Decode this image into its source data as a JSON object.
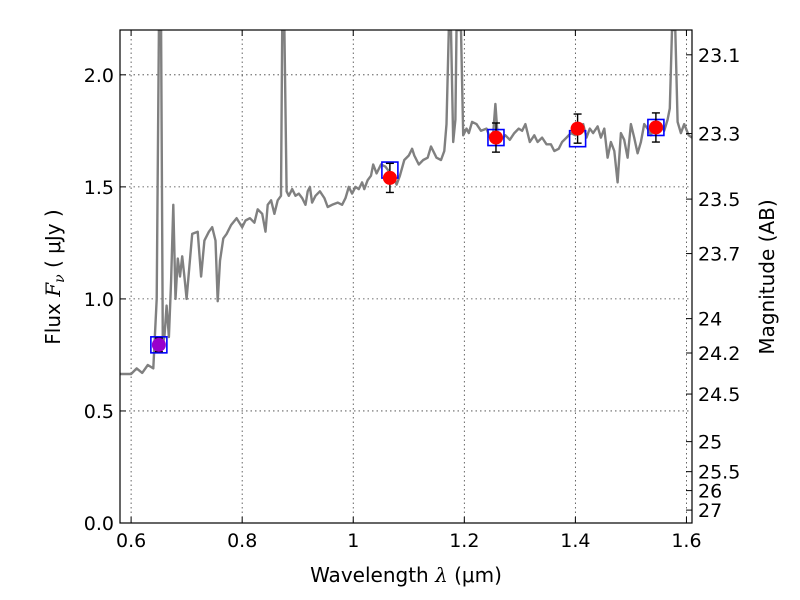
{
  "chart_data": {
    "type": "scatter",
    "xlabel": "Wavelength  λ (μm)",
    "xlabel_parts": {
      "prefix": "Wavelength  ",
      "symbol": "λ",
      "suffix": " (μm)"
    },
    "ylabel": "Flux  Fν ( μJy )",
    "ylabel_parts": {
      "prefix": "Flux  ",
      "symbol": "F",
      "subscript": "ν",
      "suffix": " ( μJy )"
    },
    "y2label": "Magnitude (AB)",
    "xlim": [
      0.58,
      1.61
    ],
    "ylim": [
      0.0,
      2.2
    ],
    "grid": true,
    "x_ticks": [
      0.6,
      0.8,
      1.0,
      1.2,
      1.4,
      1.6
    ],
    "x_tick_labels": [
      "0.6",
      "0.8",
      "1",
      "1.2",
      "1.4",
      "1.6"
    ],
    "y_ticks": [
      0.0,
      0.5,
      1.0,
      1.5,
      2.0
    ],
    "y_tick_labels": [
      "0.0",
      "0.5",
      "1.0",
      "1.5",
      "2.0"
    ],
    "y2_ticks": [
      {
        "mag": 23.1,
        "label": "23.1"
      },
      {
        "mag": 23.3,
        "label": "23.3"
      },
      {
        "mag": 23.5,
        "label": "23.5"
      },
      {
        "mag": 23.7,
        "label": "23.7"
      },
      {
        "mag": 24.0,
        "label": "24"
      },
      {
        "mag": 24.2,
        "label": "24.2"
      },
      {
        "mag": 24.5,
        "label": "24.5"
      },
      {
        "mag": 25.0,
        "label": "25"
      },
      {
        "mag": 25.5,
        "label": "25.5"
      },
      {
        "mag": 26.0,
        "label": "26"
      },
      {
        "mag": 27.0,
        "label": "27"
      }
    ],
    "series": [
      {
        "kind": "line",
        "color": "#808080",
        "points": [
          [
            0.58,
            0.665
          ],
          [
            0.6,
            0.665
          ],
          [
            0.61,
            0.69
          ],
          [
            0.62,
            0.67
          ],
          [
            0.63,
            0.705
          ],
          [
            0.64,
            0.69
          ],
          [
            0.646,
            1.0
          ],
          [
            0.65,
            2.2
          ],
          [
            0.654,
            2.2
          ],
          [
            0.657,
            0.8
          ],
          [
            0.66,
            0.83
          ],
          [
            0.664,
            0.97
          ],
          [
            0.668,
            0.83
          ],
          [
            0.672,
            1.08
          ],
          [
            0.676,
            1.42
          ],
          [
            0.68,
            1.0
          ],
          [
            0.684,
            1.18
          ],
          [
            0.688,
            1.1
          ],
          [
            0.692,
            1.19
          ],
          [
            0.696,
            1.1
          ],
          [
            0.7,
            1.0
          ],
          [
            0.704,
            1.12
          ],
          [
            0.71,
            1.29
          ],
          [
            0.72,
            1.3
          ],
          [
            0.726,
            1.1
          ],
          [
            0.732,
            1.26
          ],
          [
            0.74,
            1.3
          ],
          [
            0.746,
            1.32
          ],
          [
            0.752,
            1.26
          ],
          [
            0.756,
            0.99
          ],
          [
            0.76,
            1.17
          ],
          [
            0.766,
            1.27
          ],
          [
            0.772,
            1.29
          ],
          [
            0.78,
            1.33
          ],
          [
            0.79,
            1.36
          ],
          [
            0.8,
            1.32
          ],
          [
            0.806,
            1.35
          ],
          [
            0.814,
            1.36
          ],
          [
            0.822,
            1.34
          ],
          [
            0.828,
            1.4
          ],
          [
            0.836,
            1.38
          ],
          [
            0.842,
            1.3
          ],
          [
            0.846,
            1.42
          ],
          [
            0.852,
            1.44
          ],
          [
            0.858,
            1.38
          ],
          [
            0.864,
            1.44
          ],
          [
            0.87,
            1.46
          ],
          [
            0.872,
            2.2
          ],
          [
            0.876,
            2.2
          ],
          [
            0.88,
            1.48
          ],
          [
            0.884,
            1.46
          ],
          [
            0.89,
            1.49
          ],
          [
            0.896,
            1.46
          ],
          [
            0.902,
            1.47
          ],
          [
            0.908,
            1.45
          ],
          [
            0.914,
            1.42
          ],
          [
            0.918,
            1.48
          ],
          [
            0.922,
            1.5
          ],
          [
            0.926,
            1.43
          ],
          [
            0.932,
            1.46
          ],
          [
            0.94,
            1.48
          ],
          [
            0.948,
            1.45
          ],
          [
            0.954,
            1.41
          ],
          [
            0.962,
            1.42
          ],
          [
            0.972,
            1.43
          ],
          [
            0.98,
            1.42
          ],
          [
            0.986,
            1.45
          ],
          [
            0.992,
            1.5
          ],
          [
            0.998,
            1.47
          ],
          [
            1.004,
            1.5
          ],
          [
            1.01,
            1.49
          ],
          [
            1.016,
            1.52
          ],
          [
            1.02,
            1.49
          ],
          [
            1.026,
            1.53
          ],
          [
            1.032,
            1.55
          ],
          [
            1.036,
            1.6
          ],
          [
            1.042,
            1.56
          ],
          [
            1.05,
            1.6
          ],
          [
            1.058,
            1.59
          ],
          [
            1.064,
            1.57
          ],
          [
            1.072,
            1.55
          ],
          [
            1.078,
            1.51
          ],
          [
            1.084,
            1.55
          ],
          [
            1.092,
            1.62
          ],
          [
            1.1,
            1.64
          ],
          [
            1.106,
            1.67
          ],
          [
            1.11,
            1.64
          ],
          [
            1.118,
            1.6
          ],
          [
            1.126,
            1.62
          ],
          [
            1.134,
            1.63
          ],
          [
            1.14,
            1.68
          ],
          [
            1.15,
            1.63
          ],
          [
            1.158,
            1.62
          ],
          [
            1.164,
            1.66
          ],
          [
            1.168,
            1.78
          ],
          [
            1.172,
            2.2
          ],
          [
            1.176,
            2.2
          ],
          [
            1.18,
            1.7
          ],
          [
            1.184,
            1.8
          ],
          [
            1.186,
            2.2
          ],
          [
            1.194,
            2.2
          ],
          [
            1.198,
            1.73
          ],
          [
            1.204,
            1.76
          ],
          [
            1.208,
            1.74
          ],
          [
            1.214,
            1.79
          ],
          [
            1.222,
            1.78
          ],
          [
            1.23,
            1.75
          ],
          [
            1.24,
            1.76
          ],
          [
            1.246,
            1.72
          ],
          [
            1.252,
            1.74
          ],
          [
            1.256,
            1.87
          ],
          [
            1.26,
            1.73
          ],
          [
            1.266,
            1.71
          ],
          [
            1.274,
            1.73
          ],
          [
            1.282,
            1.71
          ],
          [
            1.29,
            1.74
          ],
          [
            1.298,
            1.76
          ],
          [
            1.304,
            1.75
          ],
          [
            1.31,
            1.78
          ],
          [
            1.318,
            1.7
          ],
          [
            1.326,
            1.73
          ],
          [
            1.332,
            1.7
          ],
          [
            1.34,
            1.72
          ],
          [
            1.348,
            1.69
          ],
          [
            1.356,
            1.69
          ],
          [
            1.362,
            1.66
          ],
          [
            1.37,
            1.67
          ],
          [
            1.376,
            1.7
          ],
          [
            1.384,
            1.72
          ],
          [
            1.392,
            1.74
          ],
          [
            1.4,
            1.73
          ],
          [
            1.408,
            1.76
          ],
          [
            1.414,
            1.78
          ],
          [
            1.42,
            1.72
          ],
          [
            1.426,
            1.76
          ],
          [
            1.432,
            1.74
          ],
          [
            1.44,
            1.77
          ],
          [
            1.446,
            1.72
          ],
          [
            1.452,
            1.76
          ],
          [
            1.458,
            1.63
          ],
          [
            1.464,
            1.7
          ],
          [
            1.47,
            1.66
          ],
          [
            1.476,
            1.52
          ],
          [
            1.482,
            1.74
          ],
          [
            1.488,
            1.71
          ],
          [
            1.494,
            1.63
          ],
          [
            1.5,
            1.78
          ],
          [
            1.506,
            1.72
          ],
          [
            1.512,
            1.65
          ],
          [
            1.518,
            1.7
          ],
          [
            1.524,
            1.78
          ],
          [
            1.53,
            1.76
          ],
          [
            1.536,
            1.73
          ],
          [
            1.542,
            1.77
          ],
          [
            1.548,
            1.79
          ],
          [
            1.554,
            1.78
          ],
          [
            1.56,
            1.75
          ],
          [
            1.566,
            1.8
          ],
          [
            1.57,
            1.85
          ],
          [
            1.574,
            2.2
          ],
          [
            1.58,
            2.2
          ],
          [
            1.584,
            1.79
          ],
          [
            1.59,
            1.74
          ],
          [
            1.596,
            1.78
          ],
          [
            1.604,
            1.73
          ],
          [
            1.61,
            1.72
          ]
        ]
      },
      {
        "kind": "marker",
        "marker": "square",
        "color": "#0000ff",
        "points": [
          [
            0.65,
            0.795
          ],
          [
            1.066,
            1.575
          ],
          [
            1.257,
            1.72
          ],
          [
            1.404,
            1.715
          ],
          [
            1.545,
            1.765
          ]
        ]
      },
      {
        "kind": "marker",
        "marker": "circle",
        "color": "#ff0000",
        "points": [
          [
            1.066,
            1.54
          ],
          [
            1.257,
            1.72
          ],
          [
            1.404,
            1.76
          ],
          [
            1.545,
            1.765
          ]
        ],
        "yerr": [
          0.065,
          0.065,
          0.065,
          0.065
        ]
      },
      {
        "kind": "marker",
        "marker": "circle",
        "color": "#9900cc",
        "points": [
          [
            0.65,
            0.795
          ]
        ],
        "yerr": [
          0.03
        ]
      }
    ]
  }
}
